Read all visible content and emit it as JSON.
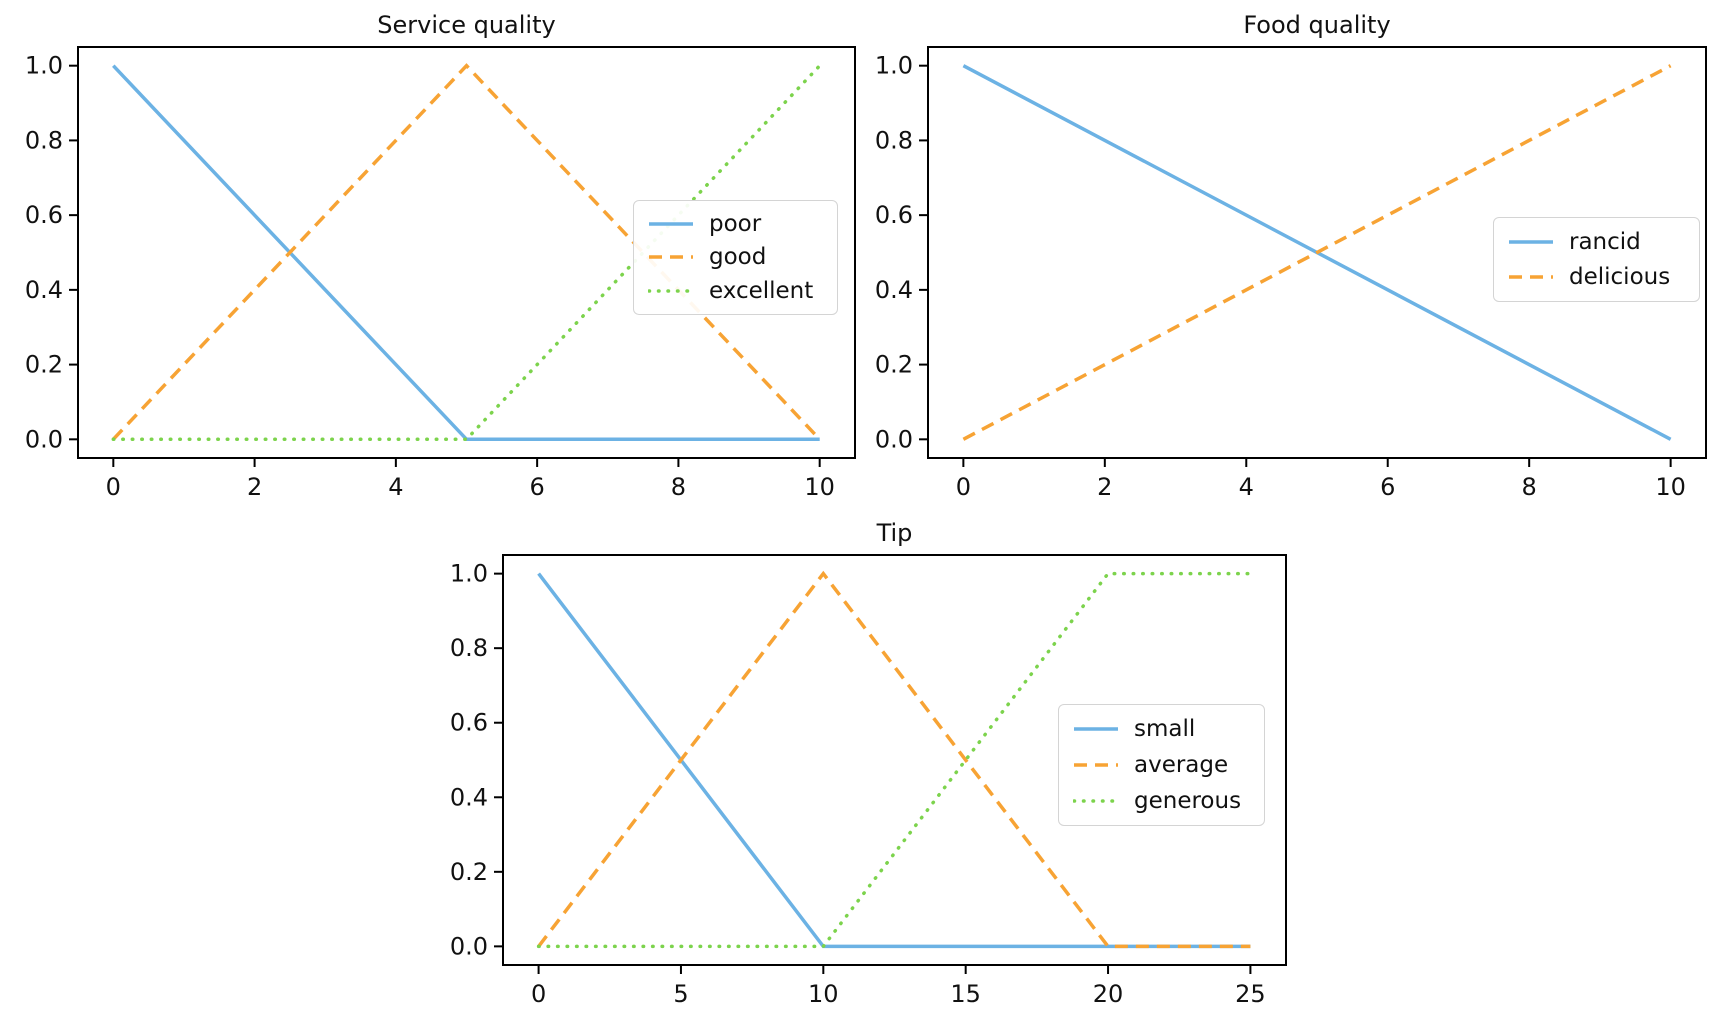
{
  "figure": {
    "background": "#ffffff"
  },
  "colors": {
    "blue": "#6cb2e4",
    "orange": "#f7a334",
    "green": "#7cd34c",
    "spine": "#000000",
    "text": "#111111",
    "legend_border": "#d4d4d4"
  },
  "chart_data": [
    {
      "type": "line",
      "title": "Service quality",
      "xlabel": "",
      "ylabel": "",
      "xlim": [
        0,
        10
      ],
      "ylim": [
        0,
        1
      ],
      "xticks": [
        "0",
        "2",
        "4",
        "6",
        "8",
        "10"
      ],
      "yticks": [
        "0.0",
        "0.2",
        "0.4",
        "0.6",
        "0.8",
        "1.0"
      ],
      "ytick_values": [
        0.0,
        0.2,
        0.4,
        0.6,
        0.8,
        1.0
      ],
      "xtick_values": [
        0,
        2,
        4,
        6,
        8,
        10
      ],
      "grid": false,
      "legend_position": "center right inside axes",
      "series": [
        {
          "name": "poor",
          "color": "blue",
          "style": "solid",
          "points": [
            [
              0,
              1
            ],
            [
              5,
              0
            ],
            [
              10,
              0
            ]
          ]
        },
        {
          "name": "good",
          "color": "orange",
          "style": "dashed",
          "points": [
            [
              0,
              0
            ],
            [
              5,
              1
            ],
            [
              10,
              0
            ]
          ]
        },
        {
          "name": "excellent",
          "color": "green",
          "style": "dotted",
          "points": [
            [
              0,
              0
            ],
            [
              5,
              0
            ],
            [
              10,
              1
            ]
          ]
        }
      ]
    },
    {
      "type": "line",
      "title": "Food quality",
      "xlabel": "",
      "ylabel": "",
      "xlim": [
        0,
        10
      ],
      "ylim": [
        0,
        1
      ],
      "xticks": [
        "0",
        "2",
        "4",
        "6",
        "8",
        "10"
      ],
      "yticks": [
        "0.0",
        "0.2",
        "0.4",
        "0.6",
        "0.8",
        "1.0"
      ],
      "ytick_values": [
        0.0,
        0.2,
        0.4,
        0.6,
        0.8,
        1.0
      ],
      "xtick_values": [
        0,
        2,
        4,
        6,
        8,
        10
      ],
      "grid": false,
      "legend_position": "center right inside axes",
      "series": [
        {
          "name": "rancid",
          "color": "blue",
          "style": "solid",
          "points": [
            [
              0,
              1
            ],
            [
              10,
              0
            ]
          ]
        },
        {
          "name": "delicious",
          "color": "orange",
          "style": "dashed",
          "points": [
            [
              0,
              0
            ],
            [
              10,
              1
            ]
          ]
        }
      ]
    },
    {
      "type": "line",
      "title": "Tip",
      "xlabel": "",
      "ylabel": "",
      "xlim": [
        0,
        25
      ],
      "ylim": [
        0,
        1
      ],
      "xticks": [
        "0",
        "5",
        "10",
        "15",
        "20",
        "25"
      ],
      "yticks": [
        "0.0",
        "0.2",
        "0.4",
        "0.6",
        "0.8",
        "1.0"
      ],
      "ytick_values": [
        0.0,
        0.2,
        0.4,
        0.6,
        0.8,
        1.0
      ],
      "xtick_values": [
        0,
        5,
        10,
        15,
        20,
        25
      ],
      "grid": false,
      "legend_position": "center right inside axes",
      "series": [
        {
          "name": "small",
          "color": "blue",
          "style": "solid",
          "points": [
            [
              0,
              1
            ],
            [
              10,
              0
            ],
            [
              25,
              0
            ]
          ]
        },
        {
          "name": "average",
          "color": "orange",
          "style": "dashed",
          "points": [
            [
              0,
              0
            ],
            [
              10,
              1
            ],
            [
              20,
              0
            ],
            [
              25,
              0
            ]
          ]
        },
        {
          "name": "generous",
          "color": "green",
          "style": "dotted",
          "points": [
            [
              0,
              0
            ],
            [
              10,
              0
            ],
            [
              20,
              1
            ],
            [
              25,
              1
            ]
          ]
        }
      ]
    }
  ]
}
